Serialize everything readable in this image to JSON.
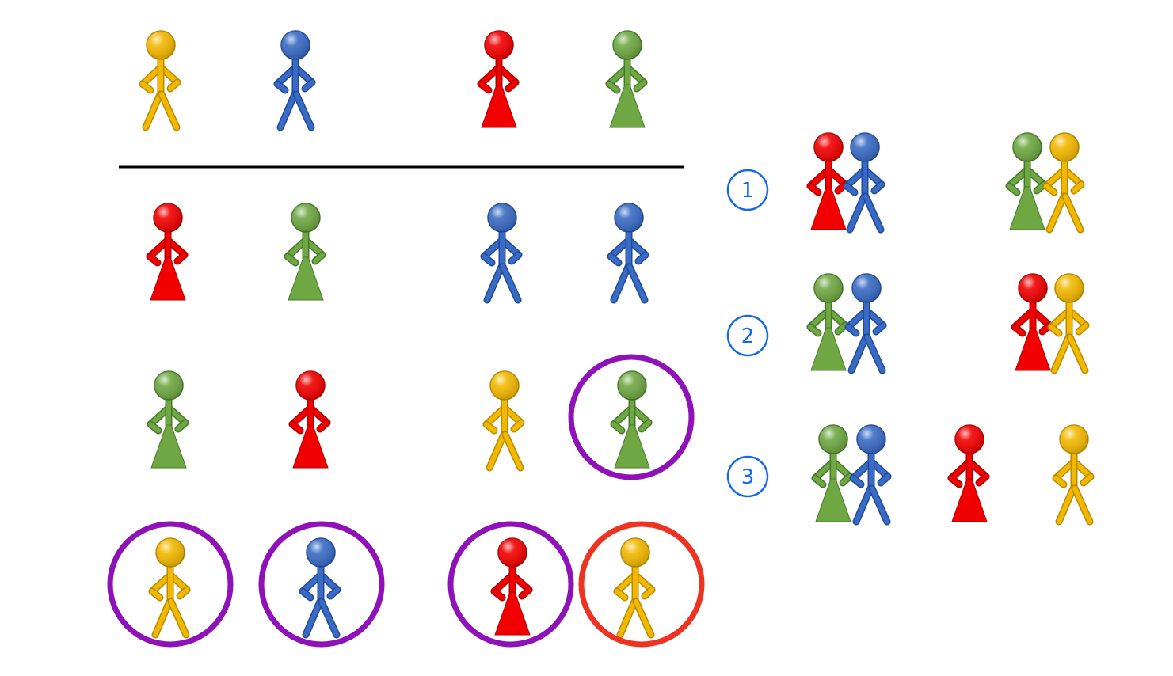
{
  "colors": {
    "yellow": "#F2B800",
    "yellow_dark": "#B88A00",
    "blue": "#3A6BC4",
    "blue_dark": "#1F4A99",
    "red": "#F20000",
    "red_dark": "#B00000",
    "green": "#6FA843",
    "green_dark": "#45782A",
    "purple_ring": "#8E12B8",
    "red_ring": "#EE3322",
    "number_blue": "#1468F0",
    "line": "#000000"
  },
  "grid": {
    "header_row": [
      {
        "color": "yellow",
        "kind": "male"
      },
      {
        "color": "blue",
        "kind": "male"
      },
      {
        "color": "red",
        "kind": "female"
      },
      {
        "color": "green",
        "kind": "female"
      }
    ],
    "rows": [
      [
        {
          "color": "red",
          "kind": "female"
        },
        {
          "color": "green",
          "kind": "female"
        },
        {
          "color": "blue",
          "kind": "male"
        },
        {
          "color": "blue",
          "kind": "male"
        }
      ],
      [
        {
          "color": "green",
          "kind": "female"
        },
        {
          "color": "red",
          "kind": "female"
        },
        {
          "color": "yellow",
          "kind": "male"
        },
        {
          "color": "green",
          "kind": "female",
          "ring": "purple_ring"
        }
      ],
      [
        {
          "color": "yellow",
          "kind": "male",
          "ring": "purple_ring"
        },
        {
          "color": "blue",
          "kind": "male",
          "ring": "purple_ring"
        },
        {
          "color": "red",
          "kind": "female",
          "ring": "purple_ring"
        },
        {
          "color": "yellow",
          "kind": "male",
          "ring": "red_ring"
        }
      ]
    ]
  },
  "options": [
    {
      "label": "1",
      "groups": [
        [
          {
            "color": "red",
            "kind": "female"
          },
          {
            "color": "blue",
            "kind": "male"
          }
        ],
        [
          {
            "color": "green",
            "kind": "female"
          },
          {
            "color": "yellow",
            "kind": "male"
          }
        ]
      ]
    },
    {
      "label": "2",
      "groups": [
        [
          {
            "color": "green",
            "kind": "female"
          },
          {
            "color": "blue",
            "kind": "male"
          }
        ],
        [
          {
            "color": "red",
            "kind": "female"
          },
          {
            "color": "yellow",
            "kind": "male"
          }
        ]
      ]
    },
    {
      "label": "3",
      "groups": [
        [
          {
            "color": "green",
            "kind": "female"
          },
          {
            "color": "blue",
            "kind": "male"
          }
        ],
        [
          {
            "color": "red",
            "kind": "female"
          }
        ],
        [
          {
            "color": "yellow",
            "kind": "male"
          }
        ]
      ]
    }
  ]
}
